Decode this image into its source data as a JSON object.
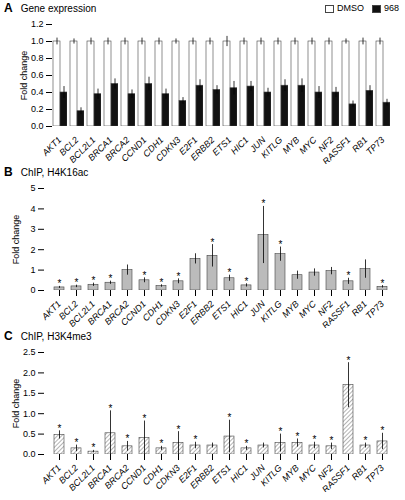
{
  "chart_data": [
    {
      "type": "bar",
      "panel_label": "A",
      "title": "Gene expression",
      "ylabel": "Fold change",
      "categories": [
        "AKT1",
        "BCL2",
        "BCL2L1",
        "BRCA1",
        "BRCA2",
        "CCND1",
        "CDH1",
        "CDKN3",
        "E2F1",
        "ERBB2",
        "ETS1",
        "HIC1",
        "JUN",
        "KITLG",
        "MYB",
        "MYC",
        "NF2",
        "RASSF1",
        "RB1",
        "TP73"
      ],
      "series": [
        {
          "name": "DMSO",
          "color": "#ffffff",
          "values": [
            1.0,
            1.0,
            1.0,
            1.0,
            1.0,
            1.0,
            1.0,
            1.0,
            1.0,
            1.0,
            1.0,
            1.0,
            1.0,
            1.0,
            1.0,
            1.0,
            1.0,
            1.0,
            1.0,
            1.0
          ],
          "error": [
            0.04,
            0.03,
            0.04,
            0.04,
            0.04,
            0.04,
            0.04,
            0.03,
            0.04,
            0.04,
            0.06,
            0.04,
            0.04,
            0.04,
            0.04,
            0.04,
            0.04,
            0.03,
            0.04,
            0.04
          ]
        },
        {
          "name": "968",
          "color": "#111111",
          "values": [
            0.4,
            0.18,
            0.38,
            0.5,
            0.38,
            0.5,
            0.38,
            0.3,
            0.48,
            0.43,
            0.45,
            0.47,
            0.4,
            0.48,
            0.48,
            0.4,
            0.4,
            0.26,
            0.42,
            0.28
          ],
          "error": [
            0.07,
            0.04,
            0.06,
            0.06,
            0.05,
            0.08,
            0.06,
            0.04,
            0.07,
            0.05,
            0.08,
            0.06,
            0.05,
            0.07,
            0.08,
            0.07,
            0.06,
            0.04,
            0.06,
            0.04
          ]
        }
      ],
      "edge_color": "#444444",
      "ylim": [
        0,
        1.2
      ],
      "yticks": [
        {
          "value": 0.0,
          "label": "0.0"
        },
        0.2,
        0.4,
        0.6,
        0.8,
        {
          "value": 1.0,
          "label": "1.0"
        },
        1.2
      ],
      "legend": "upper right",
      "grid": false
    },
    {
      "type": "bar",
      "panel_label": "B",
      "title": "ChIP, H4K16ac",
      "ylabel": "Fold change",
      "categories": [
        "AKT1",
        "BCL2",
        "BCL2L1",
        "BRCA1",
        "BRCA2",
        "CCND1",
        "CDH1",
        "CDKN3",
        "E2F1",
        "ERBB2",
        "ETS1",
        "HIC1",
        "JUN",
        "KITLG",
        "MYB",
        "MYC",
        "NF2",
        "RASSF1",
        "RB1",
        "TP73"
      ],
      "values": [
        0.15,
        0.2,
        0.28,
        0.38,
        1.0,
        0.5,
        0.22,
        0.45,
        1.55,
        1.7,
        0.6,
        0.25,
        2.72,
        1.78,
        0.75,
        0.88,
        0.95,
        0.45,
        1.05,
        0.18
      ],
      "error": [
        0.05,
        0.06,
        0.08,
        0.08,
        0.25,
        0.12,
        0.06,
        0.12,
        0.25,
        0.55,
        0.15,
        0.08,
        1.4,
        0.35,
        0.2,
        0.18,
        0.18,
        0.15,
        0.45,
        0.06
      ],
      "asterisk": [
        true,
        true,
        true,
        true,
        false,
        true,
        true,
        true,
        false,
        true,
        true,
        true,
        true,
        true,
        false,
        false,
        false,
        true,
        false,
        true
      ],
      "annotation": "*",
      "color": "#bbbbbb",
      "edge_color": "#444444",
      "ylim": [
        0,
        5
      ],
      "yticks": [
        0,
        1,
        2,
        3,
        4,
        5
      ],
      "grid": false
    },
    {
      "type": "bar",
      "panel_label": "C",
      "title": "ChIP, H3K4me3",
      "ylabel": "Fold change",
      "categories": [
        "AKT1",
        "BCL2",
        "BCL2L1",
        "BRCA1",
        "BRCA2",
        "CCND1",
        "CDH1",
        "CDKN3",
        "E2F1",
        "ERBB2",
        "ETS1",
        "HIC1",
        "JUN",
        "KITLG",
        "MYB",
        "MYC",
        "NF2",
        "RASSF1",
        "RB1",
        "TP73"
      ],
      "values": [
        0.48,
        0.15,
        0.07,
        0.52,
        0.2,
        0.4,
        0.15,
        0.28,
        0.22,
        0.22,
        0.44,
        0.15,
        0.22,
        0.28,
        0.28,
        0.22,
        0.2,
        1.7,
        0.22,
        0.32
      ],
      "error": [
        0.1,
        0.08,
        0.03,
        0.55,
        0.12,
        0.42,
        0.05,
        0.28,
        0.08,
        0.06,
        0.4,
        0.05,
        0.06,
        0.22,
        0.1,
        0.08,
        0.08,
        0.55,
        0.06,
        0.2
      ],
      "asterisk": [
        true,
        true,
        true,
        true,
        true,
        true,
        true,
        true,
        true,
        false,
        true,
        true,
        false,
        true,
        true,
        true,
        true,
        true,
        true,
        true
      ],
      "annotation": "*",
      "color": "#ffffff",
      "edge_color": "#444444",
      "ylim": [
        0,
        2.5
      ],
      "yticks": [
        {
          "value": 0.0,
          "label": "0.0"
        },
        0.5,
        {
          "value": 1.0,
          "label": "1.0"
        },
        1.5,
        {
          "value": 2.0,
          "label": "2.0"
        },
        2.5
      ],
      "grid": false
    }
  ]
}
